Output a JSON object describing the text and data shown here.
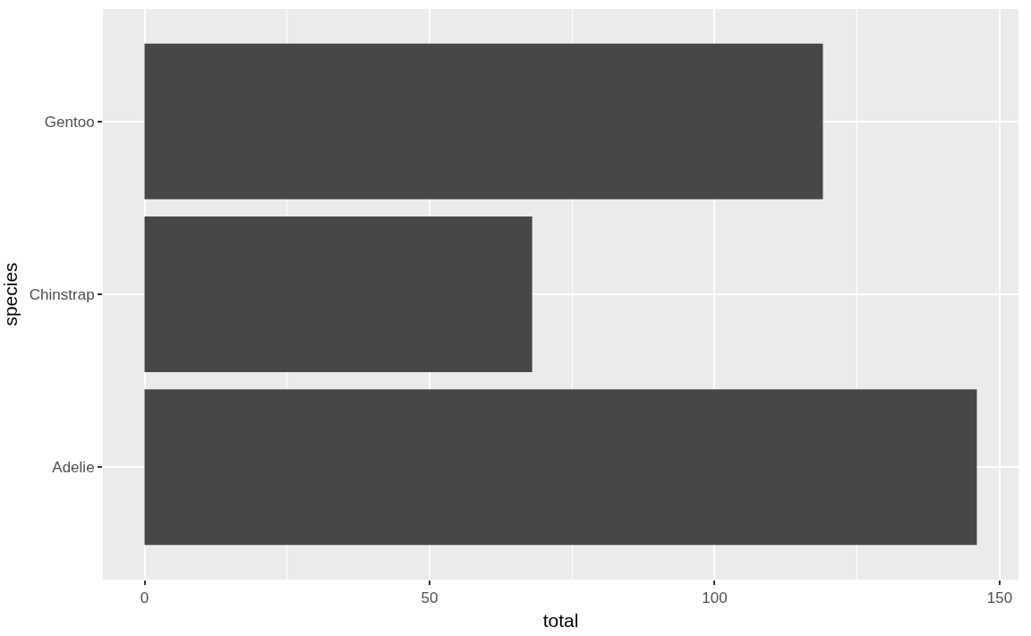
{
  "chart_data": {
    "type": "bar",
    "orientation": "horizontal",
    "xlabel": "total",
    "ylabel": "species",
    "categories": [
      "Gentoo",
      "Chinstrap",
      "Adelie"
    ],
    "values": [
      119,
      68,
      146
    ],
    "color": "#474747",
    "xlim": [
      -7.3,
      153.3
    ],
    "xticks": [
      0,
      50,
      100,
      150
    ],
    "grid": true,
    "legend": false
  }
}
